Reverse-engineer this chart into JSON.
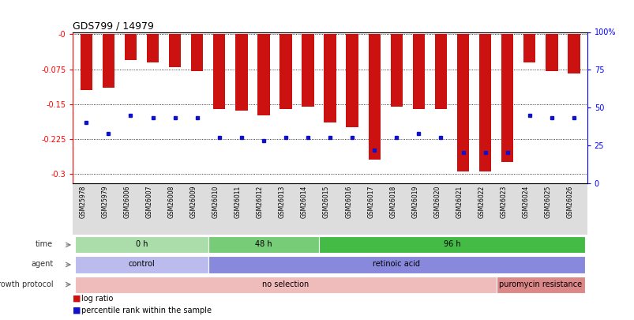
{
  "title": "GDS799 / 14979",
  "samples": [
    "GSM25978",
    "GSM25979",
    "GSM26006",
    "GSM26007",
    "GSM26008",
    "GSM26009",
    "GSM26010",
    "GSM26011",
    "GSM26012",
    "GSM26013",
    "GSM26014",
    "GSM26015",
    "GSM26016",
    "GSM26017",
    "GSM26018",
    "GSM26019",
    "GSM26020",
    "GSM26021",
    "GSM26022",
    "GSM26023",
    "GSM26024",
    "GSM26025",
    "GSM26026"
  ],
  "log_ratio": [
    -0.12,
    -0.115,
    -0.055,
    -0.06,
    -0.07,
    -0.08,
    -0.16,
    -0.165,
    -0.175,
    -0.16,
    -0.155,
    -0.19,
    -0.2,
    -0.27,
    -0.155,
    -0.16,
    -0.16,
    -0.295,
    -0.295,
    -0.275,
    -0.06,
    -0.08,
    -0.085
  ],
  "percentile_rank": [
    40,
    33,
    45,
    43,
    43,
    43,
    30,
    30,
    28,
    30,
    30,
    30,
    30,
    22,
    30,
    33,
    30,
    20,
    20,
    20,
    45,
    43,
    43
  ],
  "bar_color": "#cc1111",
  "dot_color": "#1111cc",
  "ylim_left": [
    -0.32,
    0.005
  ],
  "ylim_right": [
    0,
    100
  ],
  "yticks_left": [
    0.0,
    -0.075,
    -0.15,
    -0.225,
    -0.3
  ],
  "ytick_labels_left": [
    "-0",
    "-0.075",
    "-0.15",
    "-0.225",
    "-0.3"
  ],
  "yticks_right": [
    100,
    75,
    50,
    25,
    0
  ],
  "ytick_labels_right": [
    "100%",
    "75",
    "50",
    "25",
    "0"
  ],
  "grid_values": [
    0.0,
    -0.075,
    -0.15,
    -0.225,
    -0.3
  ],
  "time_groups": [
    {
      "label": "0 h",
      "start": 0,
      "end": 5,
      "color": "#aaddaa"
    },
    {
      "label": "48 h",
      "start": 6,
      "end": 10,
      "color": "#77cc77"
    },
    {
      "label": "96 h",
      "start": 11,
      "end": 22,
      "color": "#44bb44"
    }
  ],
  "agent_groups": [
    {
      "label": "control",
      "start": 0,
      "end": 5,
      "color": "#bbbbee"
    },
    {
      "label": "retinoic acid",
      "start": 6,
      "end": 22,
      "color": "#8888dd"
    }
  ],
  "growth_groups": [
    {
      "label": "no selection",
      "start": 0,
      "end": 18,
      "color": "#f0bbbb"
    },
    {
      "label": "puromycin resistance",
      "start": 19,
      "end": 22,
      "color": "#dd8888"
    }
  ],
  "bg_color": "#ffffff"
}
